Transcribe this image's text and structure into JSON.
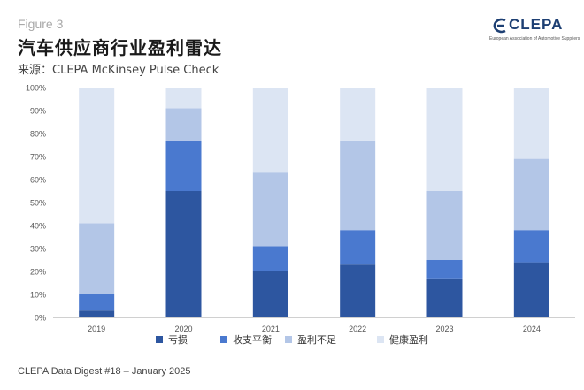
{
  "header": {
    "figure_label": "Figure 3",
    "title": "汽车供应商行业盈利雷达",
    "subtitle": "来源：CLEPA McKinsey Pulse Check"
  },
  "logo": {
    "name": "CLEPA",
    "tagline": "European Association of Automotive Suppliers",
    "color": "#1d3f73"
  },
  "footer": "CLEPA Data Digest #18 – January 2025",
  "chart_data": {
    "type": "bar",
    "stacked": true,
    "categories": [
      "2019",
      "2020",
      "2021",
      "2022",
      "2023",
      "2024"
    ],
    "series": [
      {
        "name": "亏损",
        "color": "#2d56a0",
        "values": [
          3,
          55,
          20,
          23,
          17,
          24
        ]
      },
      {
        "name": "收支平衡",
        "color": "#4a79cf",
        "values": [
          7,
          22,
          11,
          15,
          8,
          14
        ]
      },
      {
        "name": "盈利不足",
        "color": "#b3c6e7",
        "values": [
          31,
          14,
          32,
          39,
          30,
          31
        ]
      },
      {
        "name": "健康盈利",
        "color": "#dce5f3",
        "values": [
          59,
          9,
          37,
          23,
          45,
          31
        ]
      }
    ],
    "ylim": [
      0,
      100
    ],
    "yticks": [
      "0%",
      "10%",
      "20%",
      "30%",
      "40%",
      "50%",
      "60%",
      "70%",
      "80%",
      "90%",
      "100%"
    ],
    "ytick_values": [
      0,
      10,
      20,
      30,
      40,
      50,
      60,
      70,
      80,
      90,
      100
    ],
    "legend_position": "bottom",
    "grid": false
  }
}
